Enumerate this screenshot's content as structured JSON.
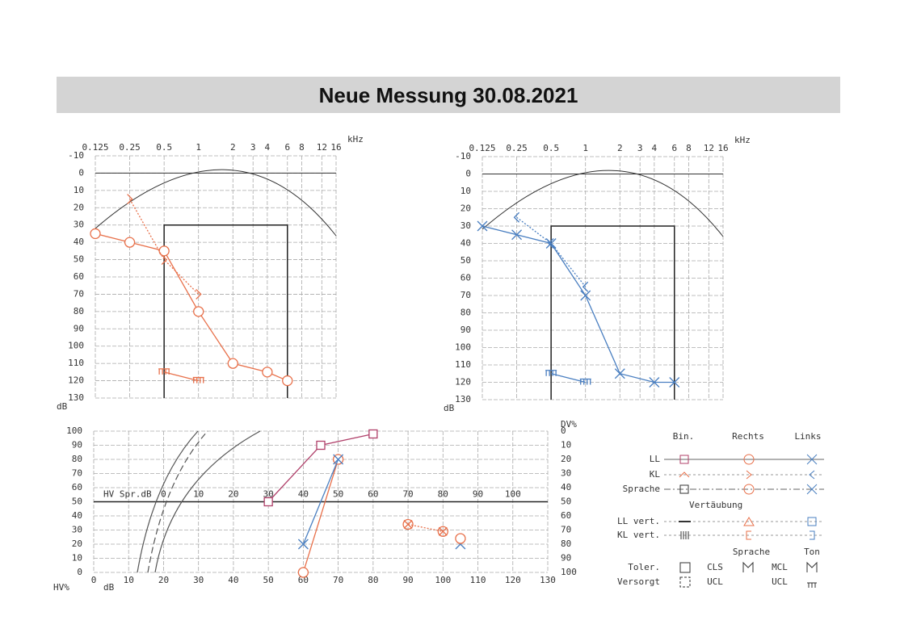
{
  "title": "Neue Messung 30.08.2021",
  "chart_data": [
    {
      "type": "line",
      "x_unit": "kHz",
      "ylabel": "dB",
      "log_x": true,
      "y_inverted": true,
      "grid": true,
      "xlim": [
        0.125,
        16
      ],
      "xticks": [
        0.125,
        0.25,
        0.5,
        1,
        2,
        3,
        4,
        6,
        8,
        12,
        16
      ],
      "ylim": [
        -10,
        130
      ],
      "yticks": [
        -10,
        0,
        10,
        20,
        30,
        40,
        50,
        60,
        70,
        80,
        90,
        100,
        110,
        120,
        130
      ],
      "frame": {
        "x": [
          0.5,
          6
        ],
        "y": [
          30,
          130
        ]
      },
      "series": [
        {
          "color": "#e8704a",
          "marker": "circle",
          "line": "solid",
          "x": [
            0.125,
            0.25,
            0.5,
            1,
            2,
            4,
            6
          ],
          "values": [
            35,
            40,
            45,
            80,
            110,
            115,
            120
          ]
        },
        {
          "color": "#e8704a",
          "marker": "gt",
          "line": "dotted",
          "x": [
            0.25,
            0.5,
            1
          ],
          "values": [
            15,
            50,
            70
          ]
        },
        {
          "color": "#e8704a",
          "marker": "mask",
          "line": "solid",
          "x": [
            0.5,
            1
          ],
          "values": [
            115,
            120
          ]
        }
      ]
    },
    {
      "type": "line",
      "x_unit": "kHz",
      "ylabel": "dB",
      "log_x": true,
      "y_inverted": true,
      "grid": true,
      "xlim": [
        0.125,
        16
      ],
      "xticks": [
        0.125,
        0.25,
        0.5,
        1,
        2,
        3,
        4,
        6,
        8,
        12,
        16
      ],
      "ylim": [
        -10,
        130
      ],
      "yticks": [
        -10,
        0,
        10,
        20,
        30,
        40,
        50,
        60,
        70,
        80,
        90,
        100,
        110,
        120,
        130
      ],
      "frame": {
        "x": [
          0.5,
          6
        ],
        "y": [
          30,
          130
        ]
      },
      "series": [
        {
          "color": "#4a7fc1",
          "marker": "cross",
          "line": "solid",
          "x": [
            0.125,
            0.25,
            0.5,
            1,
            2,
            4,
            6
          ],
          "values": [
            30,
            35,
            40,
            70,
            115,
            120,
            120
          ]
        },
        {
          "color": "#4a7fc1",
          "marker": "lt",
          "line": "dotted",
          "x": [
            0.25,
            0.5,
            1
          ],
          "values": [
            25,
            40,
            65
          ]
        },
        {
          "color": "#4a7fc1",
          "marker": "mask",
          "line": "solid",
          "x": [
            0.5,
            1
          ],
          "values": [
            115,
            120
          ]
        }
      ]
    },
    {
      "type": "line",
      "xlabel": "dB",
      "ylabel": "HV%",
      "y2label": "DV%",
      "x2label": "HV Spr.dB",
      "grid": true,
      "xlim": [
        0,
        130
      ],
      "xticks": [
        0,
        10,
        20,
        30,
        40,
        50,
        60,
        70,
        80,
        90,
        100,
        110,
        120,
        130
      ],
      "ylim": [
        0,
        100
      ],
      "yticks": [
        0,
        10,
        20,
        30,
        40,
        50,
        60,
        70,
        80,
        90,
        100
      ],
      "y2lim": [
        100,
        0
      ],
      "y2ticks": [
        0,
        10,
        20,
        30,
        40,
        50,
        60,
        70,
        80,
        90,
        100
      ],
      "x2lim": [
        -20,
        110
      ],
      "x2ticks": [
        0,
        10,
        20,
        30,
        40,
        50,
        60,
        70,
        80,
        90,
        100
      ],
      "x2_position": 50,
      "series": [
        {
          "color": "#b0406a",
          "marker": "square",
          "line": "solid",
          "x": [
            50,
            65,
            80
          ],
          "values": [
            50,
            90,
            98
          ]
        },
        {
          "color": "#e8704a",
          "marker": "circle",
          "line": "solid",
          "x": [
            60,
            70
          ],
          "values": [
            0,
            80
          ]
        },
        {
          "color": "#4a7fc1",
          "marker": "cross",
          "line": "solid",
          "x": [
            60,
            70
          ],
          "values": [
            20,
            80
          ]
        },
        {
          "color": "#e8704a",
          "marker": "circlecross",
          "line": "dotted",
          "x": [
            90,
            100
          ],
          "values": [
            34,
            29
          ]
        },
        {
          "color": "#4a7fc1",
          "marker": "cross",
          "line": "none",
          "x": [
            105
          ],
          "values": [
            20
          ]
        },
        {
          "color": "#e8704a",
          "marker": "circle",
          "line": "none",
          "x": [
            105
          ],
          "values": [
            24
          ]
        }
      ]
    }
  ],
  "legend": {
    "columns": [
      "Bin.",
      "Rechts",
      "Links"
    ],
    "rows": [
      "LL",
      "KL",
      "Sprache"
    ],
    "masking_title": "Vertäubung",
    "masking_rows": [
      "LL vert.",
      "KL vert."
    ],
    "limits_columns": [
      "Sprache",
      "Ton"
    ],
    "limits_rows": [
      {
        "label": "Toler.",
        "speech": "CLS",
        "tone": "MCL"
      },
      {
        "label": "Versorgt",
        "speech": "UCL",
        "tone": "UCL"
      }
    ]
  }
}
